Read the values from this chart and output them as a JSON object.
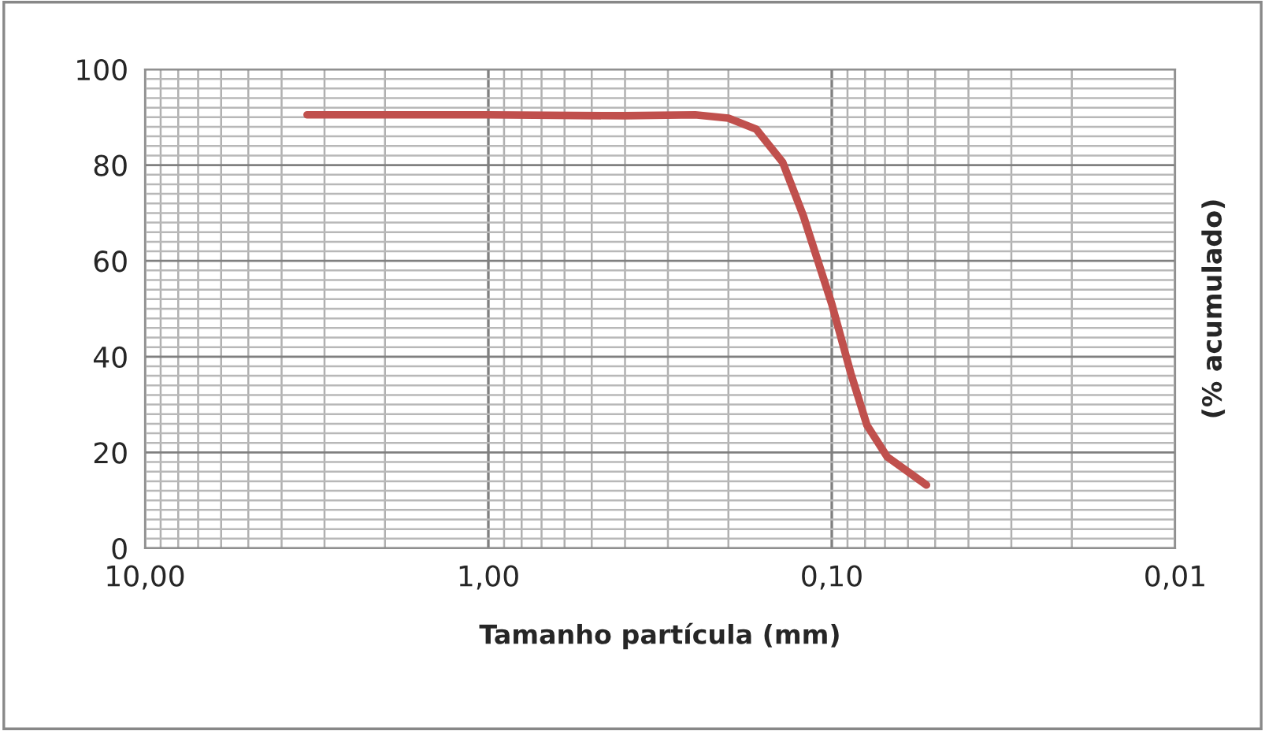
{
  "chart_data": {
    "type": "line",
    "xlabel": "Tamanho partícula (mm)",
    "ylabel": "(% acumulado)",
    "log": "x",
    "grid": true,
    "marker": "none",
    "line_style": "solid",
    "xlim": [
      10,
      0.01
    ],
    "xticks": [
      {
        "value": 10,
        "label": "10,00"
      },
      {
        "value": 1,
        "label": "1,00"
      },
      {
        "value": 0.1,
        "label": "0,10"
      },
      {
        "value": 0.01,
        "label": "0,01"
      }
    ],
    "ylim": [
      0,
      100
    ],
    "yticks": [
      0,
      20,
      40,
      60,
      80,
      100
    ],
    "series": [
      {
        "color": "#c0504d",
        "x": [
          3.37,
          1.0,
          0.4,
          0.25,
          0.2,
          0.166,
          0.139,
          0.121,
          0.1,
          0.088,
          0.079,
          0.069,
          0.053
        ],
        "values": [
          90.5,
          90.5,
          90.3,
          90.5,
          89.8,
          87.5,
          80.6,
          69.4,
          51,
          36.5,
          25.7,
          19.1,
          13.2
        ]
      }
    ]
  }
}
